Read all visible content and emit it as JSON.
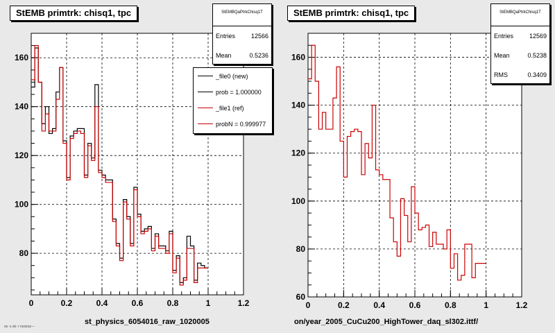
{
  "colors": {
    "new": "#000000",
    "ref": "#cc0000"
  },
  "chart_data": [
    {
      "type": "histogram",
      "title": "StEMB primtrk: chisq1, tpc",
      "xlabel": "st_physics_6054016_raw_1020005",
      "xlim": [
        0,
        1.2
      ],
      "ylim": [
        63,
        170
      ],
      "x_ticks": [
        "0",
        "0.2",
        "0.4",
        "0.6",
        "0.8",
        "1",
        "1.2"
      ],
      "y_ticks": [
        {
          "v": 80,
          "label": "80"
        },
        {
          "v": 100,
          "label": "100"
        },
        {
          "v": 120,
          "label": "120"
        },
        {
          "v": 140,
          "label": "140"
        },
        {
          "v": 160,
          "label": "160"
        }
      ],
      "bin_width": 0.02,
      "stats": {
        "title": "StEMBQaPtrkChisq1T",
        "entries_label": "Entries",
        "entries": "12566",
        "mean_label": "Mean",
        "mean": "0.5236"
      },
      "legend": [
        {
          "label": "_file0 (new)",
          "series": "new"
        },
        {
          "label": "prob = 1.000000",
          "series": "new"
        },
        {
          "label": "_file1 (ref)",
          "series": "ref"
        },
        {
          "label": "probN = 0.999977",
          "series": "ref"
        }
      ],
      "series": [
        {
          "name": "_file0 (new)",
          "color_key": "new",
          "values": [
            148,
            164,
            150,
            133,
            140,
            129,
            131,
            146,
            156,
            126,
            111,
            128,
            130,
            131,
            131,
            112,
            125,
            119,
            149,
            114,
            112,
            110,
            110,
            94,
            84,
            78,
            102,
            95,
            84,
            107,
            96,
            89,
            90,
            91,
            82,
            88,
            83,
            83,
            81,
            89,
            73,
            79,
            68,
            70,
            87,
            83,
            69,
            76,
            75,
            74
          ]
        },
        {
          "name": "_file1 (ref)",
          "color_key": "ref",
          "values": [
            151,
            165,
            150,
            130,
            137,
            130,
            130,
            143,
            156,
            125,
            110,
            127,
            129,
            130,
            129,
            111,
            124,
            118,
            140,
            113,
            111,
            109,
            109,
            93,
            83,
            77,
            101,
            94,
            83,
            106,
            95,
            88,
            89,
            90,
            81,
            87,
            82,
            82,
            80,
            88,
            72,
            78,
            67,
            69,
            82,
            82,
            68,
            74,
            74,
            74
          ]
        }
      ]
    },
    {
      "type": "histogram",
      "title": "StEMB primtrk: chisq1, tpc",
      "xlabel": "on/year_2005_CuCu200_HighTower_daq_sl302.ittf/",
      "xlim": [
        0,
        1.2
      ],
      "ylim": [
        60,
        170
      ],
      "x_ticks": [
        "0",
        "0.2",
        "0.4",
        "0.6",
        "0.8",
        "1",
        "1.2"
      ],
      "y_ticks": [
        {
          "v": 60,
          "label": "60"
        },
        {
          "v": 80,
          "label": "80"
        },
        {
          "v": 100,
          "label": "100"
        },
        {
          "v": 120,
          "label": "120"
        },
        {
          "v": 140,
          "label": "140"
        },
        {
          "v": 160,
          "label": "160"
        }
      ],
      "bin_width": 0.02,
      "stats": {
        "title": "StEMBQaPtrkChisq1T",
        "entries_label": "Entries",
        "entries": "12569",
        "mean_label": "Mean",
        "mean": "0.5238",
        "rms_label": "RMS",
        "rms": "0.3409"
      },
      "series": [
        {
          "name": "_file1 (ref)",
          "color_key": "ref",
          "values": [
            151,
            165,
            150,
            130,
            137,
            130,
            130,
            143,
            156,
            125,
            110,
            127,
            129,
            130,
            129,
            111,
            124,
            118,
            140,
            113,
            111,
            109,
            109,
            93,
            83,
            77,
            101,
            94,
            83,
            106,
            95,
            88,
            89,
            90,
            81,
            87,
            82,
            82,
            80,
            88,
            72,
            78,
            67,
            69,
            82,
            82,
            68,
            74,
            74,
            74
          ]
        }
      ]
    }
  ],
  "footer": "ss- s sk- r rsxsrsz---"
}
